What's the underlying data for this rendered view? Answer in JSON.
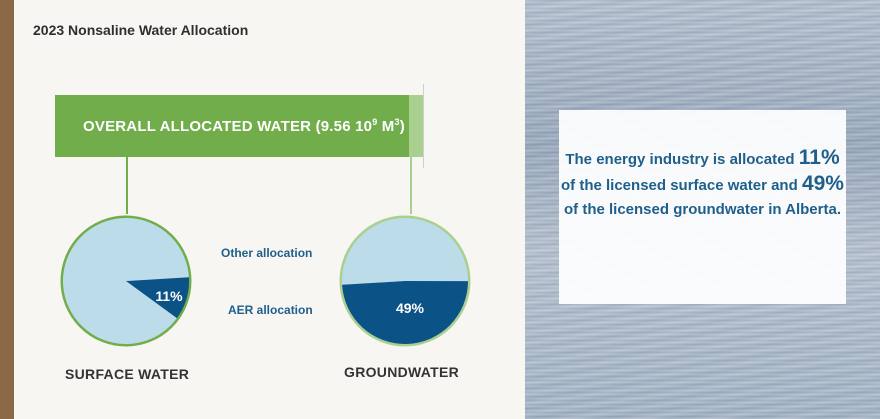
{
  "title": "2023 Nonsaline Water Allocation",
  "overall": {
    "label": "OVERALL ALLOCATED WATER (9.56 10",
    "exp": "9",
    "unit": " M",
    "unit_exp": "3",
    "close": ")"
  },
  "legend": {
    "other": "Other allocation",
    "aer": "AER allocation"
  },
  "callout": {
    "pre": "The energy industry is allocated ",
    "sw_pct": "11%",
    "mid": " of the licensed surface water and ",
    "gw_pct": "49%",
    "post": " of the licensed groundwater in Alberta."
  },
  "colors": {
    "other": "#bcdce9",
    "aer": "#0b5287",
    "sw_ring": "#72ad4b",
    "gw_ring": "#a9d08e",
    "bar": "#72ad4b"
  },
  "chart_data": {
    "type": "pie",
    "series": [
      {
        "name": "SURFACE WATER",
        "slices": [
          {
            "label": "Other allocation",
            "value": 89
          },
          {
            "label": "AER allocation",
            "value": 11,
            "data_label": "11%"
          }
        ]
      },
      {
        "name": "GROUNDWATER",
        "slices": [
          {
            "label": "Other allocation",
            "value": 51
          },
          {
            "label": "AER allocation",
            "value": 49,
            "data_label": "49%"
          }
        ]
      }
    ]
  }
}
